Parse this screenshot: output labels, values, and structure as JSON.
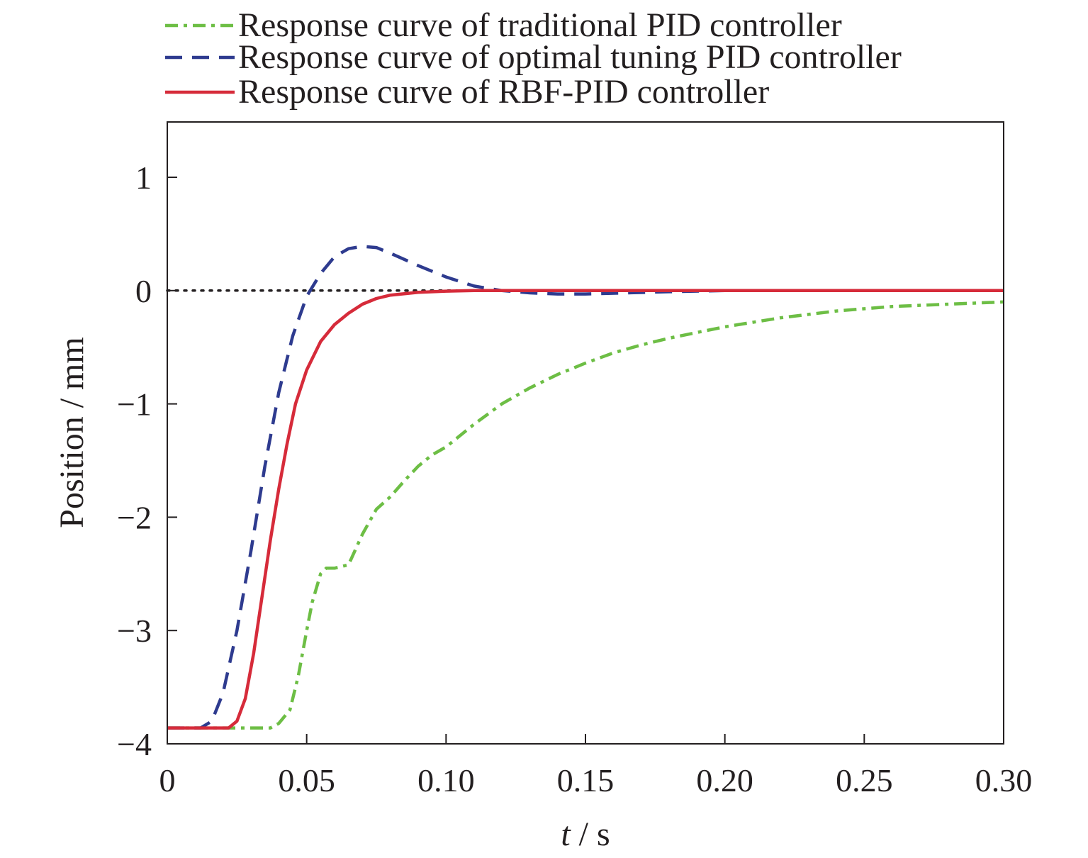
{
  "chart_data": {
    "type": "line",
    "xlabel_var": "t",
    "xlabel_unit": " / s",
    "ylabel": "Position / mm",
    "xlim": [
      0,
      0.3
    ],
    "ylim": [
      -4,
      1.5
    ],
    "x_ticks": [
      0,
      0.05,
      0.1,
      0.15,
      0.2,
      0.25,
      0.3
    ],
    "x_tick_labels": [
      "0",
      "0.05",
      "0.10",
      "0.15",
      "0.20",
      "0.25",
      "0.30"
    ],
    "y_ticks": [
      1,
      0,
      -1,
      -2,
      -3,
      -4
    ],
    "y_tick_labels": [
      "1",
      "0",
      "−1",
      "−2",
      "−3",
      "−4"
    ],
    "grid": false,
    "legend_position": "top",
    "reference_line": {
      "y": 0,
      "style": "dotted",
      "color": "#231f20"
    },
    "series": [
      {
        "name": "Response curve of traditional PID controller",
        "color": "#6dbe45",
        "style": "dash-dot",
        "x": [
          0,
          0.037,
          0.04,
          0.044,
          0.047,
          0.05,
          0.052,
          0.055,
          0.057,
          0.06,
          0.065,
          0.07,
          0.075,
          0.08,
          0.085,
          0.09,
          0.095,
          0.1,
          0.11,
          0.12,
          0.13,
          0.14,
          0.15,
          0.16,
          0.17,
          0.18,
          0.19,
          0.2,
          0.22,
          0.24,
          0.26,
          0.28,
          0.3
        ],
        "y": [
          -3.86,
          -3.86,
          -3.82,
          -3.7,
          -3.4,
          -3.0,
          -2.75,
          -2.5,
          -2.45,
          -2.45,
          -2.42,
          -2.15,
          -1.93,
          -1.82,
          -1.68,
          -1.55,
          -1.45,
          -1.38,
          -1.18,
          -1.0,
          -0.86,
          -0.74,
          -0.64,
          -0.55,
          -0.48,
          -0.42,
          -0.37,
          -0.32,
          -0.24,
          -0.18,
          -0.14,
          -0.12,
          -0.1
        ]
      },
      {
        "name": "Response curve of optimal tuning PID controller",
        "color": "#2e3b8f",
        "style": "dashed",
        "x": [
          0,
          0.012,
          0.016,
          0.02,
          0.025,
          0.03,
          0.035,
          0.04,
          0.045,
          0.05,
          0.055,
          0.06,
          0.065,
          0.07,
          0.075,
          0.08,
          0.09,
          0.1,
          0.11,
          0.12,
          0.13,
          0.14,
          0.15,
          0.165,
          0.18,
          0.2,
          0.22,
          0.25,
          0.3
        ],
        "y": [
          -3.86,
          -3.86,
          -3.8,
          -3.55,
          -3.0,
          -2.3,
          -1.55,
          -0.9,
          -0.4,
          -0.05,
          0.15,
          0.3,
          0.37,
          0.39,
          0.38,
          0.33,
          0.22,
          0.12,
          0.04,
          0.0,
          -0.02,
          -0.03,
          -0.03,
          -0.02,
          -0.01,
          0.0,
          0.0,
          0.0,
          0.0
        ]
      },
      {
        "name": "Response curve of RBF-PID controller",
        "color": "#d62b3a",
        "style": "solid",
        "x": [
          0,
          0.022,
          0.025,
          0.028,
          0.031,
          0.034,
          0.037,
          0.04,
          0.043,
          0.046,
          0.05,
          0.055,
          0.06,
          0.065,
          0.07,
          0.075,
          0.08,
          0.09,
          0.1,
          0.11,
          0.12,
          0.15,
          0.2,
          0.25,
          0.3
        ],
        "y": [
          -3.86,
          -3.86,
          -3.8,
          -3.6,
          -3.2,
          -2.7,
          -2.2,
          -1.75,
          -1.35,
          -1.0,
          -0.7,
          -0.45,
          -0.3,
          -0.2,
          -0.12,
          -0.07,
          -0.04,
          -0.015,
          -0.005,
          0.0,
          0.0,
          0.0,
          0.0,
          0.0,
          0.0
        ]
      }
    ]
  }
}
